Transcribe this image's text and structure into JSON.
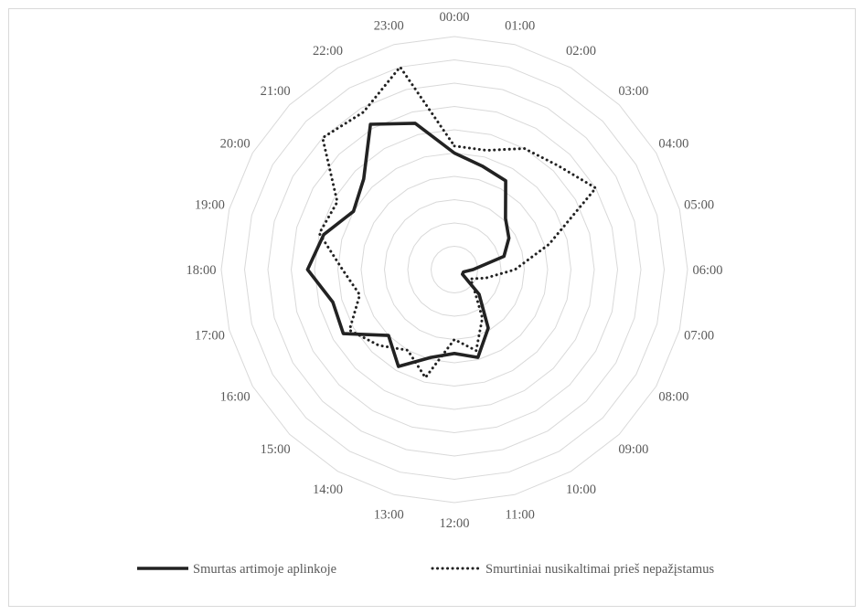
{
  "chart_data": {
    "type": "radar",
    "categories": [
      "00:00",
      "01:00",
      "02:00",
      "03:00",
      "04:00",
      "05:00",
      "06:00",
      "07:00",
      "08:00",
      "09:00",
      "10:00",
      "11:00",
      "12:00",
      "13:00",
      "14:00",
      "15:00",
      "16:00",
      "17:00",
      "18:00",
      "19:00",
      "20:00",
      "21:00",
      "22:00",
      "23:00"
    ],
    "rlim": [
      0,
      10
    ],
    "grid": true,
    "legend_position": "bottom",
    "series": [
      {
        "name": "Smurtas artimoje aplinkoje",
        "style": "solid",
        "color": "#222222",
        "values": [
          5.0,
          4.6,
          4.4,
          3.1,
          2.7,
          2.2,
          0.8,
          0.4,
          0.4,
          1.5,
          2.9,
          3.9,
          3.6,
          3.9,
          4.8,
          4.0,
          5.5,
          5.4,
          6.3,
          5.8,
          5.0,
          5.5,
          7.2,
          6.5
        ]
      },
      {
        "name": "Smurtiniai nusikaltimai prieš nepažįstamus",
        "style": "dotted",
        "color": "#222222",
        "values": [
          5.3,
          5.3,
          6.0,
          6.3,
          7.0,
          4.2,
          2.6,
          1.4,
          0.8,
          1.2,
          2.4,
          3.6,
          3.0,
          4.8,
          4.0,
          4.6,
          5.2,
          4.2,
          4.8,
          6.0,
          5.8,
          8.0,
          7.8,
          9.0
        ]
      }
    ]
  }
}
